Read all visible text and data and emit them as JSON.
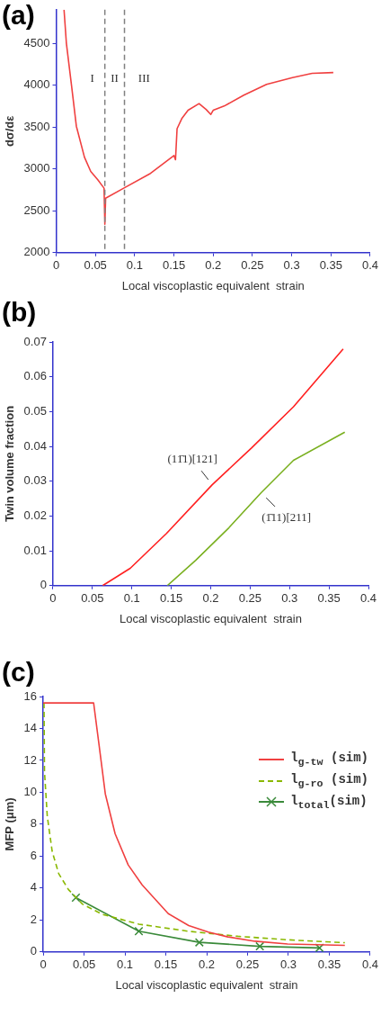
{
  "chart_data": [
    {
      "type": "line",
      "title": "(a)",
      "xlabel": "Local viscoplastic equivalent  strain",
      "ylabel": "dσ/dε",
      "series": [
        {
          "color": "#f04040",
          "x": [
            0.01,
            0.013,
            0.0195,
            0.0257,
            0.036,
            0.044,
            0.053,
            0.061,
            0.062,
            0.063,
            0.086,
            0.119,
            0.15,
            0.152,
            0.154,
            0.16,
            0.168,
            0.182,
            0.191,
            0.197,
            0.2,
            0.214,
            0.239,
            0.268,
            0.301,
            0.326,
            0.353
          ],
          "values": [
            4900,
            4500,
            4000,
            3510,
            3140,
            2970,
            2870,
            2770,
            2340,
            2650,
            2770,
            2940,
            3160,
            3110,
            3480,
            3600,
            3700,
            3780,
            3710,
            3650,
            3700,
            3750,
            3880,
            4010,
            4090,
            4140,
            4150
          ]
        }
      ],
      "xlim": [
        0,
        0.4
      ],
      "xticks": [
        0,
        0.05,
        0.1,
        0.15,
        0.2,
        0.25,
        0.3,
        0.35,
        0.4
      ],
      "ylim": [
        2000,
        4900
      ],
      "yticks": [
        2000,
        2500,
        3000,
        3500,
        4000,
        4500
      ],
      "ref_lines": [
        {
          "axis": "x",
          "value": 0.062,
          "color": "#808080",
          "line_style": "dashed"
        },
        {
          "axis": "x",
          "value": 0.087,
          "color": "#808080",
          "line_style": "dashed"
        }
      ],
      "annotations": [
        "I",
        "II",
        "III"
      ],
      "grid": false,
      "legend": false,
      "marker": "none",
      "line_style": "solid"
    },
    {
      "type": "line",
      "title": "(b)",
      "xlabel": "Local viscoplastic equivalent  strain",
      "ylabel": "Twin volume fraction",
      "series": [
        {
          "color": "#ff2020",
          "x": [
            0.063,
            0.098,
            0.144,
            0.202,
            0.252,
            0.305,
            0.368
          ],
          "values": [
            0,
            0.005,
            0.015,
            0.029,
            0.0396,
            0.0514,
            0.068
          ]
        },
        {
          "color": "#7ab020",
          "x": [
            0.145,
            0.181,
            0.223,
            0.264,
            0.305,
            0.37
          ],
          "values": [
            0,
            0.0073,
            0.0166,
            0.0267,
            0.036,
            0.0441
          ]
        }
      ],
      "xlim": [
        0,
        0.4
      ],
      "xticks": [
        0,
        0.05,
        0.1,
        0.15,
        0.2,
        0.25,
        0.3,
        0.35,
        0.4
      ],
      "ylim": [
        0,
        0.07
      ],
      "yticks": [
        0,
        0.01,
        0.02,
        0.03,
        0.04,
        0.05,
        0.06,
        0.07
      ],
      "annotations": [
        "(11̄1)[121]",
        "(1̄11)[211]"
      ],
      "grid": false,
      "legend": false,
      "marker": "none",
      "line_style": "solid"
    },
    {
      "type": "line",
      "title": "(c)",
      "xlabel": "Local viscoplastic equivalent  strain",
      "ylabel": "MFP (μm)",
      "series": [
        {
          "name": "l$_{g-tw}$ (sim)",
          "color": "#f04040",
          "line_style": "solid",
          "marker": "none",
          "x": [
            0,
            0.0617,
            0.068,
            0.076,
            0.088,
            0.104,
            0.121,
            0.137,
            0.153,
            0.178,
            0.202,
            0.226,
            0.259,
            0.299,
            0.369
          ],
          "values": [
            15.6,
            15.6,
            13.1,
            9.9,
            7.4,
            5.45,
            4.2,
            3.3,
            2.4,
            1.65,
            1.24,
            0.94,
            0.67,
            0.5,
            0.41
          ]
        },
        {
          "name": "l$_{g-ro}$ (sim)",
          "color": "#8ab800",
          "line_style": "dashed",
          "marker": "none",
          "x": [
            0.001,
            0.0016,
            0.005,
            0.011,
            0.019,
            0.031,
            0.048,
            0.072,
            0.117,
            0.177,
            0.238,
            0.299,
            0.369
          ],
          "values": [
            15.6,
            11.3,
            8.5,
            6.3,
            4.9,
            3.9,
            3.0,
            2.36,
            1.74,
            1.3,
            0.98,
            0.76,
            0.58
          ]
        },
        {
          "name": "l$_{total}$(sim)",
          "color": "#3a8a3a",
          "line_style": "solid",
          "marker": "cross",
          "x": [
            0.04,
            0.117,
            0.191,
            0.265,
            0.338
          ],
          "values": [
            3.4,
            1.3,
            0.6,
            0.35,
            0.25
          ]
        }
      ],
      "xlim": [
        0,
        0.4
      ],
      "xticks": [
        0,
        0.05,
        0.1,
        0.15,
        0.2,
        0.25,
        0.3,
        0.35,
        0.4
      ],
      "ylim": [
        0,
        16
      ],
      "yticks": [
        0,
        2,
        4,
        6,
        8,
        10,
        12,
        14,
        16
      ],
      "grid": false,
      "legend": "top right"
    }
  ]
}
